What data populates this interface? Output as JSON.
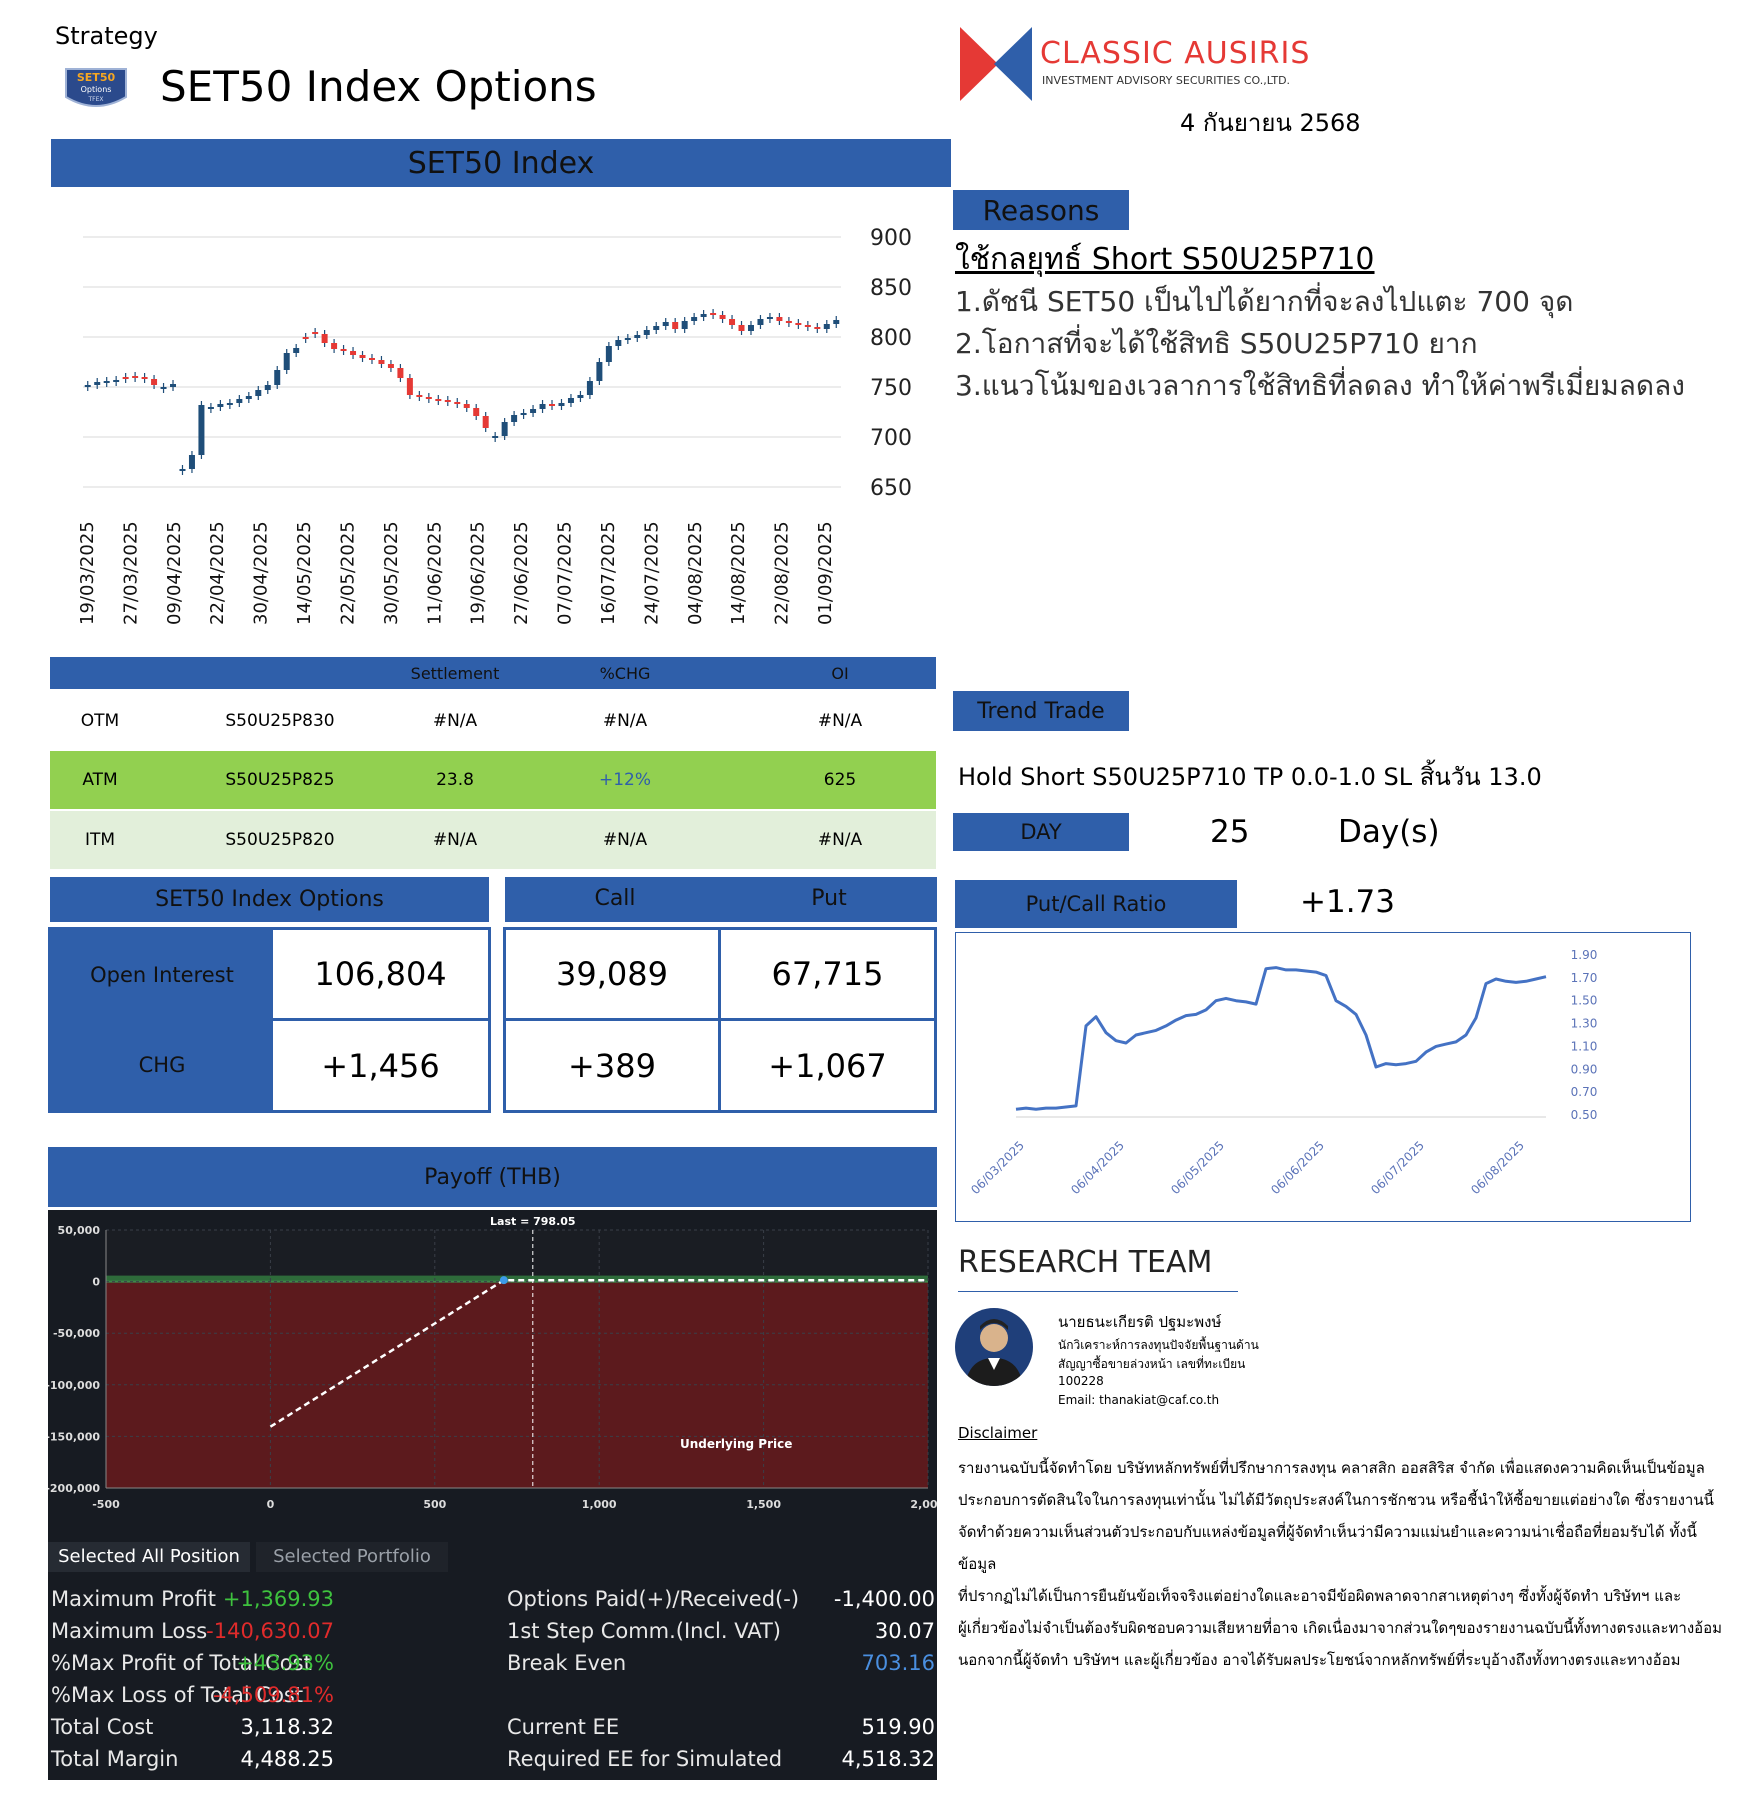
{
  "header": {
    "strategy_label": "Strategy",
    "title": "SET50 Index Options",
    "logo_badge_top": "SET50",
    "logo_badge_mid": "Options",
    "logo_badge_bot": "TFEX"
  },
  "company": {
    "name": "CLASSIC AUSIRIS",
    "sub": "INVESTMENT ADVISORY SECURITIES CO.,LTD.",
    "date": "4 กันยายน 2568"
  },
  "index_panel": {
    "title": "SET50 Index"
  },
  "candles": {
    "type": "candlestick",
    "y_ticks": [
      "900",
      "850",
      "800",
      "750",
      "700",
      "650"
    ],
    "ylim": [
      650,
      900
    ],
    "x_ticks": [
      "19/03/2025",
      "27/03/2025",
      "09/04/2025",
      "22/04/2025",
      "30/04/2025",
      "14/05/2025",
      "22/05/2025",
      "30/05/2025",
      "11/06/2025",
      "19/06/2025",
      "27/06/2025",
      "07/07/2025",
      "16/07/2025",
      "24/07/2025",
      "04/08/2025",
      "14/08/2025",
      "22/08/2025",
      "01/09/2025"
    ],
    "closes": [
      752,
      755,
      756,
      757,
      758,
      759,
      758,
      752,
      750,
      753,
      668,
      682,
      732,
      730,
      733,
      734,
      738,
      741,
      747,
      752,
      767,
      784,
      789,
      798,
      803,
      794,
      788,
      786,
      782,
      779,
      777,
      773,
      769,
      759,
      742,
      740,
      738,
      736,
      735,
      733,
      729,
      721,
      709,
      701,
      715,
      722,
      724,
      728,
      733,
      731,
      734,
      739,
      742,
      756,
      775,
      791,
      797,
      799,
      802,
      807,
      811,
      815,
      808,
      816,
      820,
      823,
      822,
      818,
      812,
      806,
      812,
      818,
      820,
      816,
      814,
      812,
      810,
      808,
      813,
      817
    ],
    "greens": [
      1,
      1,
      1,
      1,
      0,
      0,
      0,
      0,
      1,
      1,
      1,
      1,
      1,
      1,
      1,
      1,
      1,
      1,
      1,
      1,
      1,
      1,
      1,
      0,
      0,
      0,
      0,
      0,
      0,
      0,
      0,
      0,
      0,
      0,
      0,
      0,
      0,
      0,
      0,
      0,
      0,
      0,
      0,
      1,
      1,
      1,
      1,
      1,
      1,
      0,
      1,
      1,
      1,
      1,
      1,
      1,
      1,
      1,
      1,
      1,
      1,
      1,
      0,
      1,
      1,
      1,
      0,
      0,
      0,
      0,
      1,
      1,
      1,
      0,
      0,
      0,
      0,
      0,
      1,
      1
    ]
  },
  "reasons": {
    "title": "Reasons",
    "headline": "ใช้กลยุทธ์ Short S50U25P710",
    "items": [
      "1.ดัชนี SET50 เป็นไปได้ยากที่จะลงไปแตะ 700 จุด",
      "2.โอกาสที่จะได้ใช้สิทธิ S50U25P710 ยาก",
      "3.แนวโน้มของเวลาการใช้สิทธิที่ลดลง ทำให้ค่าพรีเมี่ยมลดลง"
    ]
  },
  "series_table": {
    "headers": [
      "Settlement",
      "%CHG",
      "OI"
    ],
    "rows": [
      {
        "label": "OTM",
        "series": "S50U25P830",
        "settlement": "#N/A",
        "chg": "#N/A",
        "oi": "#N/A"
      },
      {
        "label": "ATM",
        "series": "S50U25P825",
        "settlement": "23.8",
        "chg": "+12%",
        "oi": "625"
      },
      {
        "label": "ITM",
        "series": "S50U25P820",
        "settlement": "#N/A",
        "chg": "#N/A",
        "oi": "#N/A"
      }
    ]
  },
  "trend": {
    "title": "Trend Trade",
    "text": "Hold Short S50U25P710 TP 0.0-1.0 SL สิ้นวัน 13.0",
    "day_label": "DAY",
    "days": "25",
    "days_unit": "Day(s)",
    "pcr_label": "Put/Call Ratio",
    "pcr_value": "+1.73"
  },
  "oi_panel": {
    "title": "SET50 Index Options",
    "call": "Call",
    "put": "Put",
    "oi_label": "Open Interest",
    "chg_label": "CHG",
    "oi_total": "106,804",
    "oi_call": "39,089",
    "oi_put": "67,715",
    "chg_total": "+1,456",
    "chg_call": "+389",
    "chg_put": "+1,067"
  },
  "pcr_chart": {
    "type": "line",
    "y_ticks": [
      "1.90",
      "1.70",
      "1.50",
      "1.30",
      "1.10",
      "0.90",
      "0.70",
      "0.50"
    ],
    "ylim": [
      0.5,
      1.9
    ],
    "x_ticks": [
      "06/03/2025",
      "06/04/2025",
      "06/05/2025",
      "06/06/2025",
      "06/07/2025",
      "06/08/2025"
    ],
    "values": [
      0.55,
      0.56,
      0.55,
      0.56,
      0.56,
      0.57,
      0.58,
      1.28,
      1.36,
      1.22,
      1.15,
      1.13,
      1.2,
      1.22,
      1.24,
      1.28,
      1.33,
      1.37,
      1.38,
      1.42,
      1.5,
      1.52,
      1.5,
      1.49,
      1.47,
      1.78,
      1.79,
      1.77,
      1.77,
      1.76,
      1.75,
      1.72,
      1.5,
      1.45,
      1.38,
      1.2,
      0.92,
      0.95,
      0.94,
      0.95,
      0.97,
      1.05,
      1.1,
      1.12,
      1.14,
      1.2,
      1.35,
      1.65,
      1.69,
      1.67,
      1.66,
      1.67,
      1.69,
      1.71
    ],
    "color": "#4472c4"
  },
  "research": {
    "title": "RESEARCH TEAM",
    "name": "นายธนะเกียรติ ปฐมะพงษ์",
    "role": "นักวิเคราะห์การลงทุนปัจจัยพื้นฐานด้าน",
    "license": "สัญญาซื้อขายล่วงหน้า เลขที่ทะเบียน",
    "license_no": "100228",
    "email": "Email: thanakiat@caf.co.th"
  },
  "disclaimer": {
    "title": "Disclaimer",
    "lines": [
      "รายงานฉบับนี้จัดทำโดย บริษัทหลักทรัพย์ที่ปรึกษาการลงทุน คลาสสิก ออสสิริส จำกัด เพื่อแสดงความคิดเห็นเป็นข้อมูล",
      "ประกอบการตัดสินใจในการลงทุนเท่านั้น ไม่ได้มีวัตถุประสงค์ในการชักชวน หรือชี้นำให้ซื้อขายแต่อย่างใด ซึ่งรายงานนี้",
      "จัดทำด้วยความเห็นส่วนตัวประกอบกับแหล่งข้อมูลที่ผู้จัดทำเห็นว่ามีความแม่นยำและความน่าเชื่อถือที่ยอมรับได้ ทั้งนี้ข้อมูล",
      "ที่ปรากฏไม่ได้เป็นการยืนยันข้อเท็จจริงแต่อย่างใดและอาจมีข้อผิดพลาดจากสาเหตุต่างๆ ซึ่งทั้งผู้จัดทำ บริษัทฯ และ",
      "ผู้เกี่ยวข้องไม่จำเป็นต้องรับผิดชอบความเสียหายที่อาจ เกิดเนื่องมาจากส่วนใดๆของรายงานฉบับนี้ทั้งทางตรงและทางอ้อม",
      "นอกจากนี้ผู้จัดทำ บริษัทฯ และผู้เกี่ยวข้อง อาจได้รับผลประโยชน์จากหลักทรัพย์ที่ระบุอ้างถึงทั้งทางตรงและทางอ้อม"
    ]
  },
  "payoff": {
    "title": "Payoff (THB)",
    "last_label": "Last = 798.05",
    "underlying_label": "Underlying Price",
    "y_ticks": [
      "50,000",
      "0",
      "-50,000",
      "-100,000",
      "-150,000",
      "-200,000"
    ],
    "x_ticks": [
      "-500",
      "0",
      "500",
      "1,000",
      "1,500",
      "2,00"
    ],
    "last": 798.05,
    "xlim": [
      -500,
      2000
    ],
    "ylim": [
      -200000,
      50000
    ],
    "line": [
      [
        0,
        -140630.07
      ],
      [
        710,
        1369.93
      ],
      [
        2000,
        1369.93
      ]
    ],
    "tabs": [
      "Selected All Position",
      "Selected Portfolio"
    ],
    "left_stats": [
      {
        "label": "Maximum Profit",
        "value": "+1,369.93",
        "color": "#3ec23e"
      },
      {
        "label": "Maximum Loss",
        "value": "-140,630.07",
        "color": "#e02b2b"
      },
      {
        "label": "%Max Profit of Total Cost",
        "value": "+43.93%",
        "color": "#3ec23e"
      },
      {
        "label": "%Max Loss of Total Cost",
        "value": "-4,509.81%",
        "color": "#e02b2b"
      },
      {
        "label": "Total Cost",
        "value": "3,118.32",
        "color": "#ffffff"
      },
      {
        "label": "Total Margin",
        "value": "4,488.25",
        "color": "#ffffff"
      }
    ],
    "right_stats": [
      {
        "label": "Options Paid(+)/Received(-)",
        "value": "-1,400.00",
        "color": "#ffffff"
      },
      {
        "label": "1st Step Comm.(Incl. VAT)",
        "value": "30.07",
        "color": "#ffffff"
      },
      {
        "label": "Break Even",
        "value": "703.16",
        "color": "#4a8fe0"
      },
      {
        "label": "",
        "value": "",
        "color": "#ffffff"
      },
      {
        "label": "Current EE",
        "value": "519.90",
        "color": "#ffffff"
      },
      {
        "label": "Required EE for Simulated",
        "value": "4,518.32",
        "color": "#ffffff"
      }
    ]
  }
}
